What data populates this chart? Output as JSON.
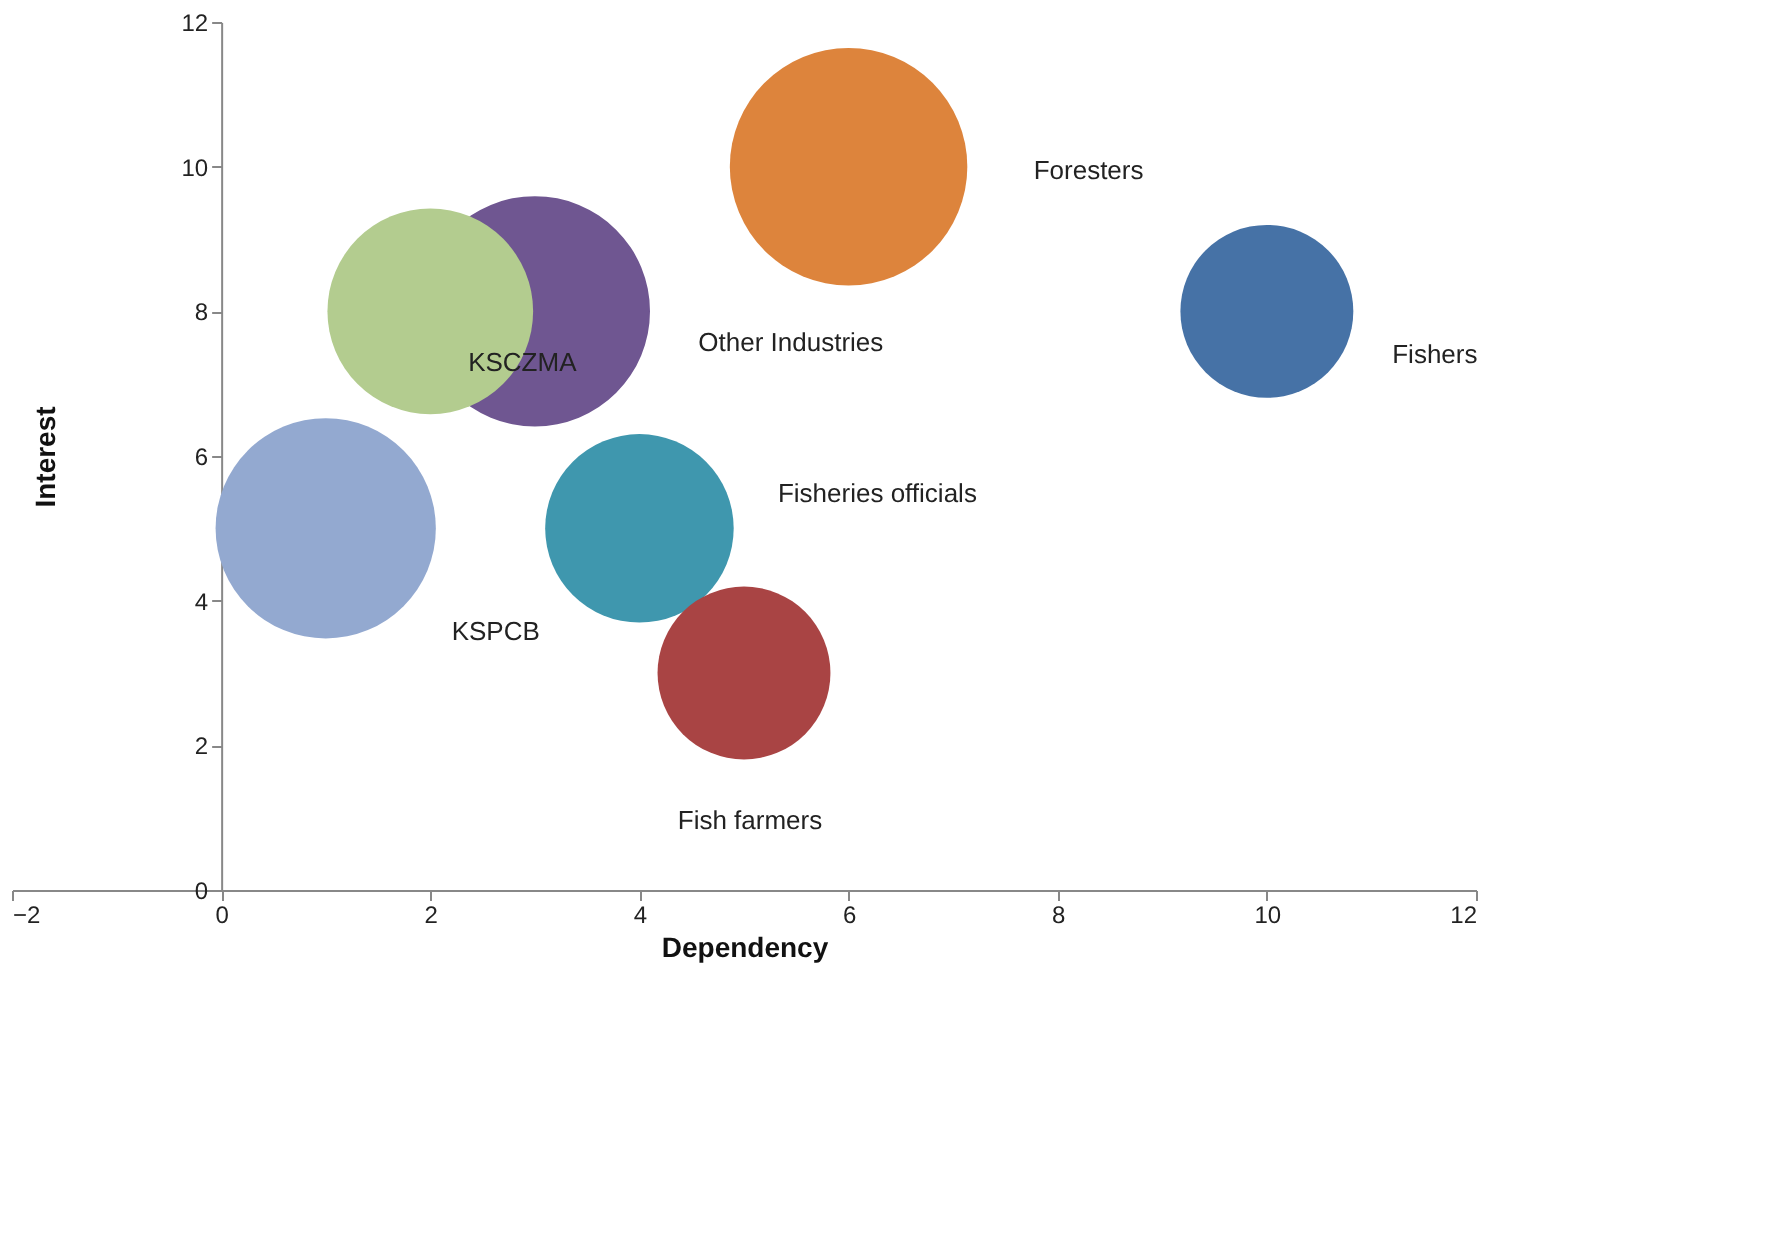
{
  "chart_data": {
    "type": "bubble",
    "xlabel": "Dependency",
    "ylabel": "Interest",
    "xlim": [
      -2,
      12
    ],
    "xticks": [
      -2,
      0,
      2,
      4,
      6,
      8,
      10,
      12
    ],
    "ylim": [
      0,
      12
    ],
    "yticks": [
      0,
      2,
      4,
      6,
      8,
      10,
      12
    ],
    "grid": false,
    "series": [
      {
        "name": "KSPCB",
        "color": "#93a9d0",
        "x": [
          1
        ],
        "values": [
          5
        ],
        "sizes": [
          0.86
        ]
      },
      {
        "name": "Other Industries",
        "color": "#6f5691",
        "x": [
          3
        ],
        "values": [
          8
        ],
        "sizes": [
          0.94
        ]
      },
      {
        "name": "KSCZMA",
        "color": "#b3cc8f",
        "x": [
          2
        ],
        "values": [
          8
        ],
        "sizes": [
          0.75
        ]
      },
      {
        "name": "Foresters",
        "color": "#dd843c",
        "x": [
          6
        ],
        "values": [
          10
        ],
        "sizes": [
          1
        ]
      },
      {
        "name": "Fishers",
        "color": "#4672a6",
        "x": [
          10
        ],
        "values": [
          8
        ],
        "sizes": [
          0.53
        ]
      },
      {
        "name": "Fisheries officials",
        "color": "#3f97ae",
        "x": [
          4
        ],
        "values": [
          5
        ],
        "sizes": [
          0.63
        ]
      },
      {
        "name": "Fish farmers",
        "color": "#a94444",
        "x": [
          5
        ],
        "values": [
          3
        ],
        "sizes": [
          0.53
        ]
      }
    ]
  }
}
